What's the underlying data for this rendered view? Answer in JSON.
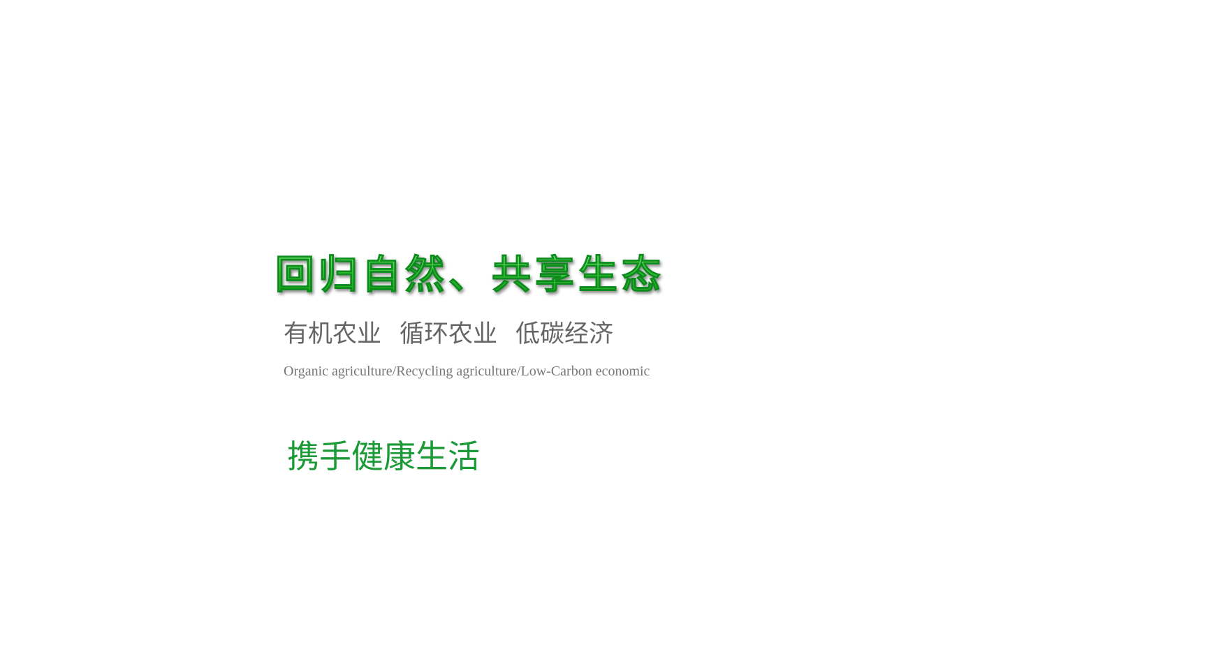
{
  "banner": {
    "headline": "回归自然、共享生态",
    "keywords": [
      "有机农业",
      "循环农业",
      "低碳经济"
    ],
    "english_subtitle": "Organic agriculture/Recycling agriculture/Low-Carbon economic",
    "slogan": "携手健康生活"
  },
  "colors": {
    "headline_green": "#35c935",
    "keyword_gray": "#666666",
    "slogan_green": "#1c9a37",
    "background": "#ffffff"
  }
}
